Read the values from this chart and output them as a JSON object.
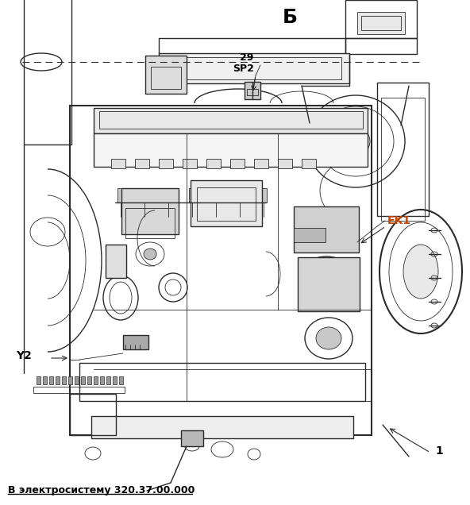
{
  "title_top": "Б",
  "label_29": "29",
  "label_sp2": "SP2",
  "label_ek1": "EK1",
  "label_y2": "Y2",
  "label_1": "1",
  "bottom_text": "В электросистему 320.37.00.000",
  "bg_color": "#ffffff",
  "line_color": "#2a2a2a",
  "label_color_ek1": "#cc4400",
  "label_color_y2": "#000000",
  "label_color_1": "#000000",
  "label_color_b": "#000000",
  "fig_width": 5.92,
  "fig_height": 6.36,
  "dpi": 100
}
